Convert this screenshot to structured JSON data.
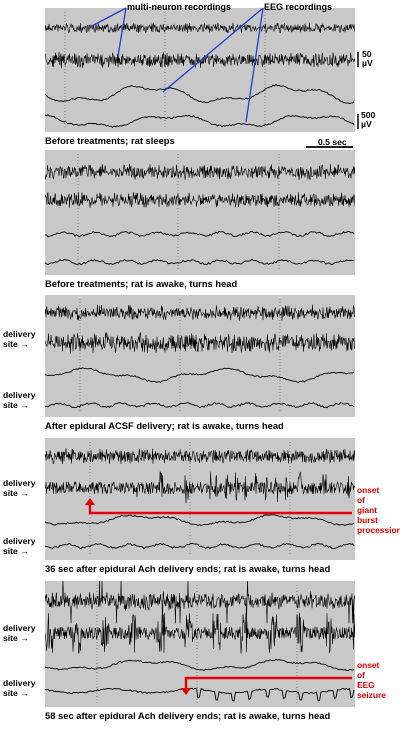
{
  "annotations": {
    "multi_neuron": "multi-neuron recordings",
    "eeg": "EEG recordings"
  },
  "scale": {
    "top": "50",
    "top_unit": "µV",
    "bottom": "500",
    "bottom_unit": "µV",
    "time": "0.5 sec"
  },
  "panels": [
    {
      "caption": "Before treatments; rat sleeps",
      "traces": [
        "multi-neuron",
        "multi-neuron",
        "EEG",
        "EEG"
      ]
    },
    {
      "caption": "Before treatments; rat is awake, turns head",
      "traces": [
        "multi-neuron",
        "multi-neuron",
        "EEG",
        "EEG"
      ]
    },
    {
      "caption": "After epidural ACSF delivery; rat is awake, turns head",
      "delivery_label": [
        "delivery",
        "site"
      ],
      "traces": [
        "multi-neuron",
        "multi-neuron",
        "EEG",
        "EEG"
      ]
    },
    {
      "caption": "36 sec after epidural Ach delivery ends; rat is awake, turns head",
      "delivery_label": [
        "delivery",
        "site"
      ],
      "red_note": [
        "onset",
        "of",
        "giant",
        "burst",
        "procession"
      ],
      "traces": [
        "multi-neuron",
        "multi-neuron",
        "EEG",
        "EEG"
      ]
    },
    {
      "caption": "58 sec after epidural Ach delivery ends; rat is awake, turns head",
      "delivery_label": [
        "delivery",
        "site"
      ],
      "red_note": [
        "onset",
        "of",
        "EEG",
        "seizure"
      ],
      "traces": [
        "multi-neuron",
        "multi-neuron",
        "EEG",
        "EEG"
      ]
    }
  ],
  "colors": {
    "panel_bg": "#c8c8c8",
    "trace": "#000000",
    "annotation_line": "#1f3fd0",
    "onset_marker": "#e00000"
  }
}
